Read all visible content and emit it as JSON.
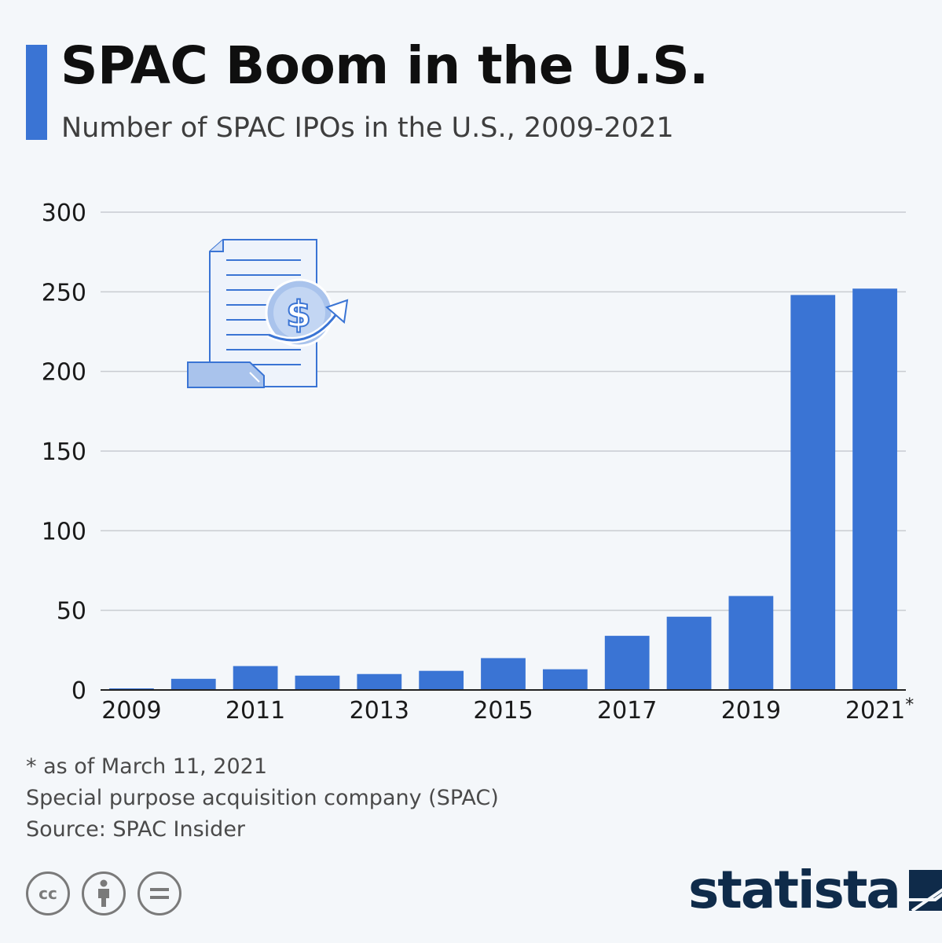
{
  "header": {
    "title": "SPAC Boom in the U.S.",
    "subtitle": "Number of SPAC IPOs in the U.S., 2009-2021"
  },
  "colors": {
    "accent": "#3a74d4",
    "bar": "#3a74d4",
    "grid": "#c8ccd1",
    "brand": "#0f2b4a"
  },
  "chart_data": {
    "type": "bar",
    "categories": [
      "2009",
      "2010",
      "2011",
      "2012",
      "2013",
      "2014",
      "2015",
      "2016",
      "2017",
      "2018",
      "2019",
      "2020",
      "2021*"
    ],
    "tick_labels": [
      "2009",
      "2011",
      "2013",
      "2015",
      "2017",
      "2019",
      "2021*"
    ],
    "values": [
      1,
      7,
      15,
      9,
      10,
      12,
      20,
      13,
      34,
      46,
      59,
      248,
      252
    ],
    "yticks": [
      0,
      50,
      100,
      150,
      200,
      250,
      300
    ],
    "ylim": [
      0,
      300
    ],
    "grid": true,
    "legend": "none"
  },
  "illustration": {
    "icon": "document-dollar-growth-icon"
  },
  "footer": {
    "notes": [
      "* as of March 11, 2021",
      "Special purpose acquisition company (SPAC)",
      "Source: SPAC Insider"
    ],
    "license_icons": [
      "cc-icon",
      "attribution-icon",
      "no-derivatives-icon"
    ],
    "brand": "statista"
  }
}
